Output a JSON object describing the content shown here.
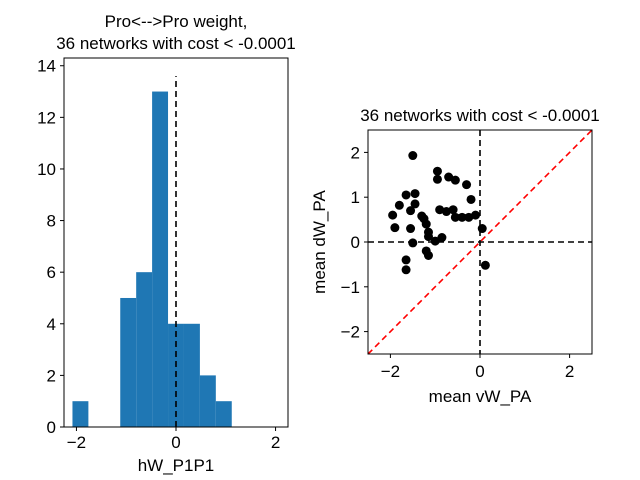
{
  "chart_data": [
    {
      "type": "bar",
      "title": [
        "Pro<-->Pro weight,",
        "36 networks with cost < -0.0001"
      ],
      "xlabel": "hW_P1P1",
      "ylabel": "",
      "xlim": [
        -2.25,
        2.25
      ],
      "ylim": [
        0,
        14.3
      ],
      "xticks": [
        -2,
        0,
        2
      ],
      "xtick_labels": [
        "−2",
        "0",
        "2"
      ],
      "yticks": [
        0,
        2,
        4,
        6,
        8,
        10,
        12,
        14
      ],
      "ytick_labels": [
        "0",
        "2",
        "4",
        "6",
        "8",
        "10",
        "12",
        "14"
      ],
      "bars": [
        {
          "x0": -2.08,
          "x1": -1.76,
          "value": 1
        },
        {
          "x0": -1.12,
          "x1": -0.8,
          "value": 5
        },
        {
          "x0": -0.8,
          "x1": -0.48,
          "value": 6
        },
        {
          "x0": -0.48,
          "x1": -0.16,
          "value": 13
        },
        {
          "x0": -0.16,
          "x1": 0.16,
          "value": 4
        },
        {
          "x0": 0.16,
          "x1": 0.48,
          "value": 4
        },
        {
          "x0": 0.48,
          "x1": 0.8,
          "value": 2
        },
        {
          "x0": 0.8,
          "x1": 1.12,
          "value": 1
        }
      ],
      "vline": {
        "x": 0,
        "y_top": 13.6,
        "style": "dashed",
        "color": "#000000"
      },
      "colors": {
        "bar": "#1f77b4"
      }
    },
    {
      "type": "scatter",
      "title": "36 networks with cost < -0.0001",
      "xlabel": "mean vW_PA",
      "ylabel": "mean dW_PA",
      "xlim": [
        -2.5,
        2.5
      ],
      "ylim": [
        -2.5,
        2.5
      ],
      "xticks": [
        -2,
        0,
        2
      ],
      "xtick_labels": [
        "−2",
        "0",
        "2"
      ],
      "yticks": [
        -2,
        -1,
        0,
        1,
        2
      ],
      "ytick_labels": [
        "−2",
        "−1",
        "0",
        "1",
        "2"
      ],
      "points": [
        [
          -1.5,
          1.93
        ],
        [
          -1.65,
          1.05
        ],
        [
          -1.45,
          1.08
        ],
        [
          -1.95,
          0.6
        ],
        [
          -1.8,
          0.82
        ],
        [
          -1.9,
          0.32
        ],
        [
          -1.55,
          0.7
        ],
        [
          -1.45,
          0.85
        ],
        [
          -1.3,
          0.58
        ],
        [
          -1.25,
          0.52
        ],
        [
          -1.2,
          0.4
        ],
        [
          -1.15,
          0.22
        ],
        [
          -1.15,
          0.12
        ],
        [
          -1.55,
          0.3
        ],
        [
          -1.5,
          -0.02
        ],
        [
          -1.65,
          -0.4
        ],
        [
          -1.65,
          -0.62
        ],
        [
          -1.2,
          -0.2
        ],
        [
          -1.15,
          -0.3
        ],
        [
          -1.0,
          0.02
        ],
        [
          -0.95,
          1.58
        ],
        [
          -0.95,
          1.4
        ],
        [
          -0.7,
          1.45
        ],
        [
          -0.55,
          1.38
        ],
        [
          -0.3,
          1.28
        ],
        [
          -0.2,
          0.95
        ],
        [
          -0.1,
          0.6
        ],
        [
          -0.9,
          0.72
        ],
        [
          -0.75,
          0.68
        ],
        [
          -0.6,
          0.72
        ],
        [
          -0.4,
          0.55
        ],
        [
          -0.25,
          0.55
        ],
        [
          -0.55,
          0.55
        ],
        [
          -0.85,
          0.1
        ],
        [
          0.05,
          0.3
        ],
        [
          0.12,
          -0.52
        ]
      ],
      "reference_lines": {
        "zero_lines": "dashed black",
        "identity_line": "dashed red"
      },
      "colors": {
        "point": "#000000",
        "identity": "#ff0000"
      }
    }
  ]
}
